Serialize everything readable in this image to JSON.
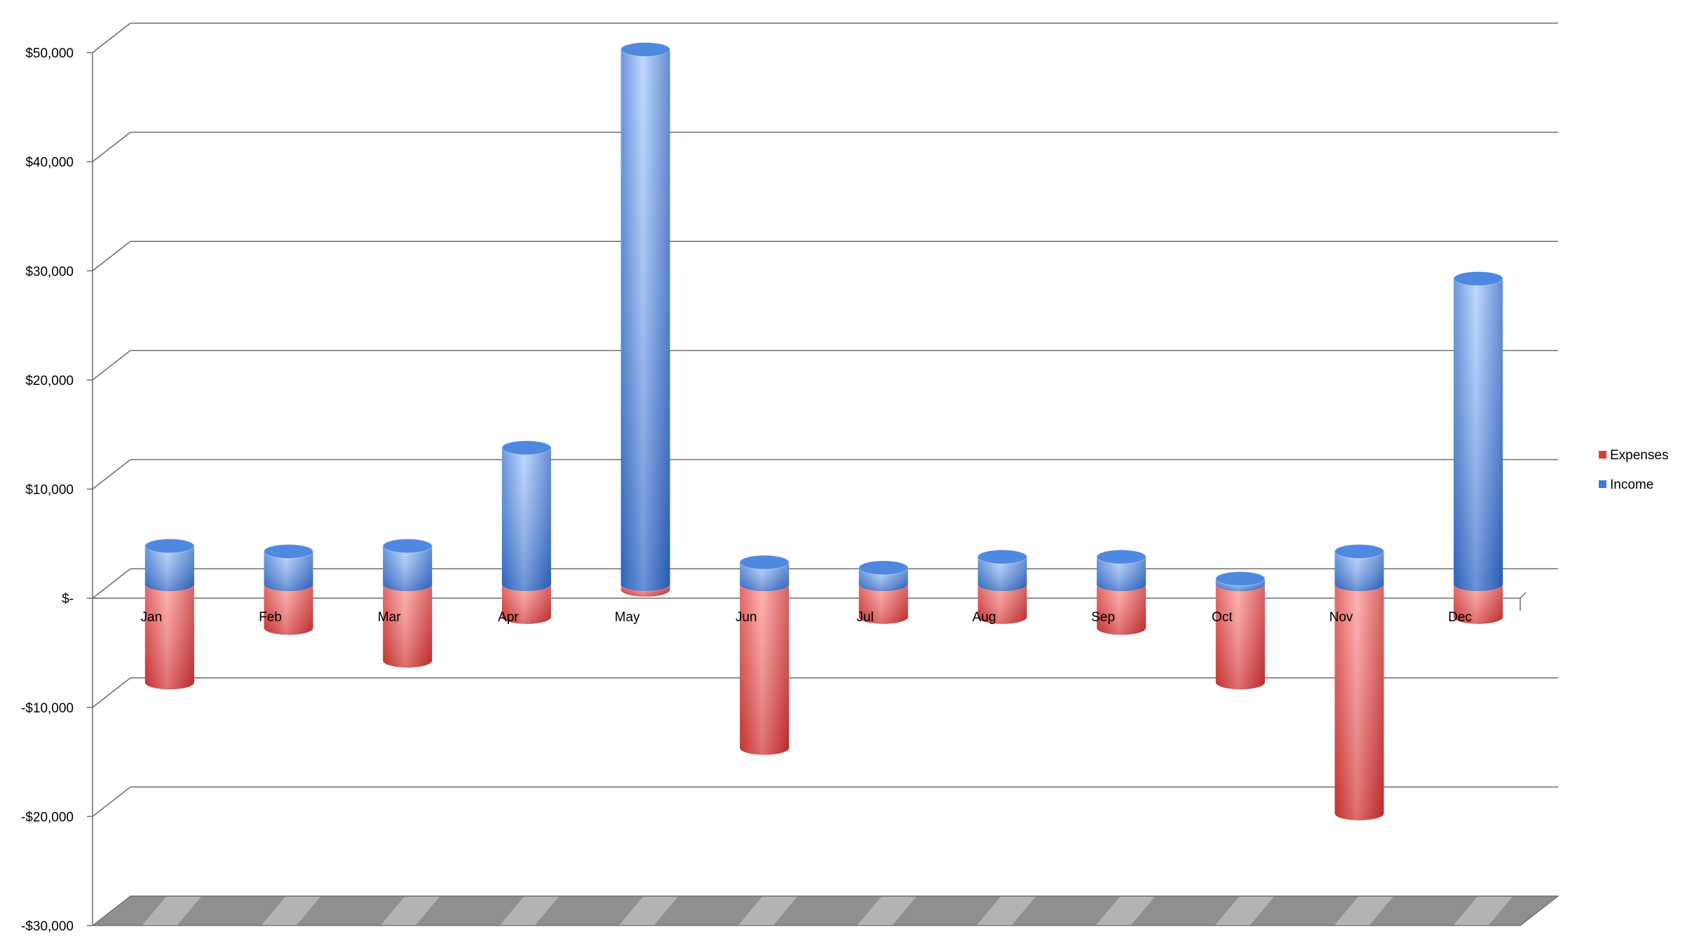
{
  "chart_data": {
    "type": "bar",
    "stacked": true,
    "style": "3d-cylinder",
    "title": "",
    "xlabel": "",
    "ylabel": "",
    "categories": [
      "Jan",
      "Feb",
      "Mar",
      "Apr",
      "May",
      "Jun",
      "Jul",
      "Aug",
      "Sep",
      "Oct",
      "Nov",
      "Dec"
    ],
    "series": [
      {
        "name": "Expenses",
        "color": "#e03c3c",
        "values": [
          -9000,
          -4000,
          -7000,
          -3000,
          -500,
          -15000,
          -3000,
          -3000,
          -4000,
          -9000,
          -21000,
          -3000
        ]
      },
      {
        "name": "Income",
        "color": "#3b78d8",
        "values": [
          3500,
          3000,
          3500,
          12500,
          49000,
          2000,
          1500,
          2500,
          2500,
          500,
          3000,
          28000
        ]
      }
    ],
    "ylim": [
      -30000,
      50000
    ],
    "yticks": [
      50000,
      40000,
      30000,
      20000,
      10000,
      0,
      -10000,
      -20000,
      -30000
    ],
    "ytick_labels": [
      "$50,000",
      "$40,000",
      "$30,000",
      "$20,000",
      "$10,000",
      "$-",
      "-$10,000",
      "-$20,000",
      "-$30,000"
    ],
    "grid": true,
    "legend": "right"
  }
}
